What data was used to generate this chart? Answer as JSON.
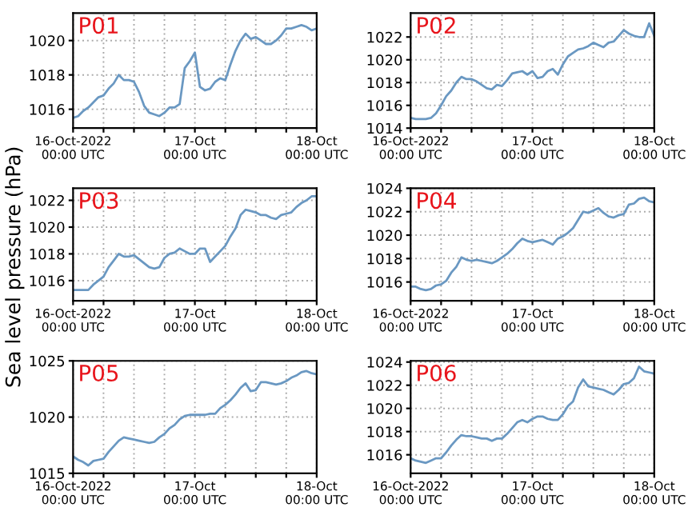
{
  "chart_data": [
    {
      "type": "line",
      "title": "P01",
      "x": [
        "2022-10-16T00:00",
        "2022-10-16T01:00",
        "2022-10-16T02:00",
        "2022-10-16T03:00",
        "2022-10-16T04:00",
        "2022-10-16T05:00",
        "2022-10-16T06:00",
        "2022-10-16T07:00",
        "2022-10-16T08:00",
        "2022-10-16T09:00",
        "2022-10-16T10:00",
        "2022-10-16T11:00",
        "2022-10-16T12:00",
        "2022-10-16T13:00",
        "2022-10-16T14:00",
        "2022-10-16T15:00",
        "2022-10-16T16:00",
        "2022-10-16T17:00",
        "2022-10-16T18:00",
        "2022-10-16T19:00",
        "2022-10-16T20:00",
        "2022-10-16T21:00",
        "2022-10-16T22:00",
        "2022-10-16T23:00",
        "2022-10-17T00:00",
        "2022-10-17T01:00",
        "2022-10-17T02:00",
        "2022-10-17T03:00",
        "2022-10-17T04:00",
        "2022-10-17T05:00",
        "2022-10-17T06:00",
        "2022-10-17T07:00",
        "2022-10-17T08:00",
        "2022-10-17T09:00",
        "2022-10-17T10:00",
        "2022-10-17T11:00",
        "2022-10-17T12:00",
        "2022-10-17T13:00",
        "2022-10-17T14:00",
        "2022-10-17T15:00",
        "2022-10-17T16:00",
        "2022-10-17T17:00",
        "2022-10-17T18:00",
        "2022-10-17T19:00",
        "2022-10-17T20:00",
        "2022-10-17T21:00",
        "2022-10-17T22:00",
        "2022-10-17T23:00",
        "2022-10-18T00:00"
      ],
      "color": "#6a98c2",
      "grid": true,
      "xlim": [
        "2022-10-16T00:00",
        "2022-10-18T00:00"
      ],
      "ylim": [
        1014.9,
        1021.6
      ],
      "yticks": [
        1016,
        1018,
        1020
      ],
      "xticks": [
        {
          "value": "2022-10-16T00:00",
          "label": "16-Oct-2022\n00:00 UTC"
        },
        {
          "value": "2022-10-16T06:00",
          "label": null
        },
        {
          "value": "2022-10-16T12:00",
          "label": null
        },
        {
          "value": "2022-10-16T18:00",
          "label": null
        },
        {
          "value": "2022-10-17T00:00",
          "label": "17-Oct\n00:00 UTC"
        },
        {
          "value": "2022-10-17T06:00",
          "label": null
        },
        {
          "value": "2022-10-17T12:00",
          "label": null
        },
        {
          "value": "2022-10-17T18:00",
          "label": null
        },
        {
          "value": "2022-10-18T00:00",
          "label": "18-Oct\n00:00 UTC"
        }
      ],
      "values": [
        1015.5,
        1015.6,
        1015.9,
        1016.1,
        1016.4,
        1016.7,
        1016.8,
        1017.2,
        1017.5,
        1018.0,
        1017.7,
        1017.7,
        1017.6,
        1017.0,
        1016.2,
        1015.8,
        1015.7,
        1015.6,
        1015.8,
        1016.1,
        1016.1,
        1016.3,
        1018.4,
        1018.8,
        1019.3,
        1017.3,
        1017.1,
        1017.2,
        1017.6,
        1017.8,
        1017.7,
        1018.6,
        1019.4,
        1020.0,
        1020.4,
        1020.1,
        1020.2,
        1020.0,
        1019.8,
        1019.8,
        1020.0,
        1020.3,
        1020.7,
        1020.7,
        1020.8,
        1020.9,
        1020.8,
        1020.6,
        1020.7
      ]
    },
    {
      "type": "line",
      "title": "P02",
      "x": [
        "2022-10-16T00:00",
        "2022-10-16T01:00",
        "2022-10-16T02:00",
        "2022-10-16T03:00",
        "2022-10-16T04:00",
        "2022-10-16T05:00",
        "2022-10-16T06:00",
        "2022-10-16T07:00",
        "2022-10-16T08:00",
        "2022-10-16T09:00",
        "2022-10-16T10:00",
        "2022-10-16T11:00",
        "2022-10-16T12:00",
        "2022-10-16T13:00",
        "2022-10-16T14:00",
        "2022-10-16T15:00",
        "2022-10-16T16:00",
        "2022-10-16T17:00",
        "2022-10-16T18:00",
        "2022-10-16T19:00",
        "2022-10-16T20:00",
        "2022-10-16T21:00",
        "2022-10-16T22:00",
        "2022-10-16T23:00",
        "2022-10-17T00:00",
        "2022-10-17T01:00",
        "2022-10-17T02:00",
        "2022-10-17T03:00",
        "2022-10-17T04:00",
        "2022-10-17T05:00",
        "2022-10-17T06:00",
        "2022-10-17T07:00",
        "2022-10-17T08:00",
        "2022-10-17T09:00",
        "2022-10-17T10:00",
        "2022-10-17T11:00",
        "2022-10-17T12:00",
        "2022-10-17T13:00",
        "2022-10-17T14:00",
        "2022-10-17T15:00",
        "2022-10-17T16:00",
        "2022-10-17T17:00",
        "2022-10-17T18:00",
        "2022-10-17T19:00",
        "2022-10-17T20:00",
        "2022-10-17T21:00",
        "2022-10-17T22:00",
        "2022-10-17T23:00",
        "2022-10-18T00:00"
      ],
      "color": "#6a98c2",
      "grid": true,
      "xlim": [
        "2022-10-16T00:00",
        "2022-10-18T00:00"
      ],
      "ylim": [
        1014,
        1024.1
      ],
      "yticks": [
        1014,
        1016,
        1018,
        1020,
        1022
      ],
      "xticks": [
        {
          "value": "2022-10-16T00:00",
          "label": "16-Oct-2022\n00:00 UTC"
        },
        {
          "value": "2022-10-16T06:00",
          "label": null
        },
        {
          "value": "2022-10-16T12:00",
          "label": null
        },
        {
          "value": "2022-10-16T18:00",
          "label": null
        },
        {
          "value": "2022-10-17T00:00",
          "label": "17-Oct\n00:00 UTC"
        },
        {
          "value": "2022-10-17T06:00",
          "label": null
        },
        {
          "value": "2022-10-17T12:00",
          "label": null
        },
        {
          "value": "2022-10-17T18:00",
          "label": null
        },
        {
          "value": "2022-10-18T00:00",
          "label": "18-Oct\n00:00 UTC"
        }
      ],
      "values": [
        1014.9,
        1014.8,
        1014.8,
        1014.8,
        1014.9,
        1015.3,
        1016.0,
        1016.8,
        1017.3,
        1018.0,
        1018.5,
        1018.3,
        1018.3,
        1018.1,
        1017.8,
        1017.5,
        1017.4,
        1017.8,
        1017.7,
        1018.2,
        1018.8,
        1018.9,
        1019.0,
        1018.7,
        1019.0,
        1018.4,
        1018.5,
        1019.0,
        1019.2,
        1018.7,
        1019.6,
        1020.3,
        1020.6,
        1020.9,
        1021.0,
        1021.2,
        1021.5,
        1021.3,
        1021.1,
        1021.5,
        1021.6,
        1022.1,
        1022.6,
        1022.3,
        1022.1,
        1022.0,
        1022.0,
        1023.2,
        1022.1
      ]
    },
    {
      "type": "line",
      "title": "P03",
      "x": [
        "2022-10-16T00:00",
        "2022-10-16T01:00",
        "2022-10-16T02:00",
        "2022-10-16T03:00",
        "2022-10-16T04:00",
        "2022-10-16T05:00",
        "2022-10-16T06:00",
        "2022-10-16T07:00",
        "2022-10-16T08:00",
        "2022-10-16T09:00",
        "2022-10-16T10:00",
        "2022-10-16T11:00",
        "2022-10-16T12:00",
        "2022-10-16T13:00",
        "2022-10-16T14:00",
        "2022-10-16T15:00",
        "2022-10-16T16:00",
        "2022-10-16T17:00",
        "2022-10-16T18:00",
        "2022-10-16T19:00",
        "2022-10-16T20:00",
        "2022-10-16T21:00",
        "2022-10-16T22:00",
        "2022-10-16T23:00",
        "2022-10-17T00:00",
        "2022-10-17T01:00",
        "2022-10-17T02:00",
        "2022-10-17T03:00",
        "2022-10-17T04:00",
        "2022-10-17T05:00",
        "2022-10-17T06:00",
        "2022-10-17T07:00",
        "2022-10-17T08:00",
        "2022-10-17T09:00",
        "2022-10-17T10:00",
        "2022-10-17T11:00",
        "2022-10-17T12:00",
        "2022-10-17T13:00",
        "2022-10-17T14:00",
        "2022-10-17T15:00",
        "2022-10-17T16:00",
        "2022-10-17T17:00",
        "2022-10-17T18:00",
        "2022-10-17T19:00",
        "2022-10-17T20:00",
        "2022-10-17T21:00",
        "2022-10-17T22:00",
        "2022-10-17T23:00",
        "2022-10-18T00:00"
      ],
      "ylabel": "Sea level pressure (hPa)",
      "color": "#6a98c2",
      "grid": true,
      "xlim": [
        "2022-10-16T00:00",
        "2022-10-18T00:00"
      ],
      "ylim": [
        1014.5,
        1022.9
      ],
      "yticks": [
        1016,
        1018,
        1020,
        1022
      ],
      "xticks": [
        {
          "value": "2022-10-16T00:00",
          "label": "16-Oct-2022\n00:00 UTC"
        },
        {
          "value": "2022-10-16T06:00",
          "label": null
        },
        {
          "value": "2022-10-16T12:00",
          "label": null
        },
        {
          "value": "2022-10-16T18:00",
          "label": null
        },
        {
          "value": "2022-10-17T00:00",
          "label": "17-Oct\n00:00 UTC"
        },
        {
          "value": "2022-10-17T06:00",
          "label": null
        },
        {
          "value": "2022-10-17T12:00",
          "label": null
        },
        {
          "value": "2022-10-17T18:00",
          "label": null
        },
        {
          "value": "2022-10-18T00:00",
          "label": "18-Oct\n00:00 UTC"
        }
      ],
      "values": [
        1015.3,
        1015.3,
        1015.3,
        1015.3,
        1015.7,
        1016.0,
        1016.3,
        1017.0,
        1017.5,
        1018.0,
        1017.8,
        1017.8,
        1017.9,
        1017.6,
        1017.3,
        1017.0,
        1016.9,
        1017.0,
        1017.7,
        1018.0,
        1018.1,
        1018.4,
        1018.2,
        1018.0,
        1018.0,
        1018.4,
        1018.4,
        1017.4,
        1017.8,
        1018.2,
        1018.6,
        1019.3,
        1019.9,
        1020.9,
        1021.3,
        1021.2,
        1021.1,
        1020.9,
        1020.9,
        1020.7,
        1020.6,
        1020.9,
        1021.0,
        1021.1,
        1021.5,
        1021.8,
        1022.0,
        1022.3,
        1022.3
      ]
    },
    {
      "type": "line",
      "title": "P04",
      "x": [
        "2022-10-16T00:00",
        "2022-10-16T01:00",
        "2022-10-16T02:00",
        "2022-10-16T03:00",
        "2022-10-16T04:00",
        "2022-10-16T05:00",
        "2022-10-16T06:00",
        "2022-10-16T07:00",
        "2022-10-16T08:00",
        "2022-10-16T09:00",
        "2022-10-16T10:00",
        "2022-10-16T11:00",
        "2022-10-16T12:00",
        "2022-10-16T13:00",
        "2022-10-16T14:00",
        "2022-10-16T15:00",
        "2022-10-16T16:00",
        "2022-10-16T17:00",
        "2022-10-16T18:00",
        "2022-10-16T19:00",
        "2022-10-16T20:00",
        "2022-10-16T21:00",
        "2022-10-16T22:00",
        "2022-10-16T23:00",
        "2022-10-17T00:00",
        "2022-10-17T01:00",
        "2022-10-17T02:00",
        "2022-10-17T03:00",
        "2022-10-17T04:00",
        "2022-10-17T05:00",
        "2022-10-17T06:00",
        "2022-10-17T07:00",
        "2022-10-17T08:00",
        "2022-10-17T09:00",
        "2022-10-17T10:00",
        "2022-10-17T11:00",
        "2022-10-17T12:00",
        "2022-10-17T13:00",
        "2022-10-17T14:00",
        "2022-10-17T15:00",
        "2022-10-17T16:00",
        "2022-10-17T17:00",
        "2022-10-17T18:00",
        "2022-10-17T19:00",
        "2022-10-17T20:00",
        "2022-10-17T21:00",
        "2022-10-17T22:00",
        "2022-10-17T23:00",
        "2022-10-18T00:00"
      ],
      "color": "#6a98c2",
      "grid": true,
      "xlim": [
        "2022-10-16T00:00",
        "2022-10-18T00:00"
      ],
      "ylim": [
        1014.4,
        1024
      ],
      "yticks": [
        1016,
        1018,
        1020,
        1022,
        1024
      ],
      "xticks": [
        {
          "value": "2022-10-16T00:00",
          "label": "16-Oct-2022\n00:00 UTC"
        },
        {
          "value": "2022-10-16T06:00",
          "label": null
        },
        {
          "value": "2022-10-16T12:00",
          "label": null
        },
        {
          "value": "2022-10-16T18:00",
          "label": null
        },
        {
          "value": "2022-10-17T00:00",
          "label": "17-Oct\n00:00 UTC"
        },
        {
          "value": "2022-10-17T06:00",
          "label": null
        },
        {
          "value": "2022-10-17T12:00",
          "label": null
        },
        {
          "value": "2022-10-17T18:00",
          "label": null
        },
        {
          "value": "2022-10-18T00:00",
          "label": "18-Oct\n00:00 UTC"
        }
      ],
      "values": [
        1015.6,
        1015.6,
        1015.4,
        1015.3,
        1015.4,
        1015.7,
        1015.8,
        1016.1,
        1016.8,
        1017.3,
        1018.1,
        1017.9,
        1017.8,
        1017.9,
        1017.8,
        1017.7,
        1017.6,
        1017.8,
        1018.1,
        1018.4,
        1018.8,
        1019.3,
        1019.7,
        1019.5,
        1019.4,
        1019.5,
        1019.6,
        1019.4,
        1019.2,
        1019.7,
        1019.9,
        1020.2,
        1020.6,
        1021.3,
        1022.0,
        1021.9,
        1022.1,
        1022.3,
        1021.9,
        1021.6,
        1021.5,
        1021.7,
        1021.8,
        1022.6,
        1022.7,
        1023.1,
        1023.2,
        1022.9,
        1022.8
      ]
    },
    {
      "type": "line",
      "title": "P05",
      "x": [
        "2022-10-16T00:00",
        "2022-10-16T01:00",
        "2022-10-16T02:00",
        "2022-10-16T03:00",
        "2022-10-16T04:00",
        "2022-10-16T05:00",
        "2022-10-16T06:00",
        "2022-10-16T07:00",
        "2022-10-16T08:00",
        "2022-10-16T09:00",
        "2022-10-16T10:00",
        "2022-10-16T11:00",
        "2022-10-16T12:00",
        "2022-10-16T13:00",
        "2022-10-16T14:00",
        "2022-10-16T15:00",
        "2022-10-16T16:00",
        "2022-10-16T17:00",
        "2022-10-16T18:00",
        "2022-10-16T19:00",
        "2022-10-16T20:00",
        "2022-10-16T21:00",
        "2022-10-16T22:00",
        "2022-10-16T23:00",
        "2022-10-17T00:00",
        "2022-10-17T01:00",
        "2022-10-17T02:00",
        "2022-10-17T03:00",
        "2022-10-17T04:00",
        "2022-10-17T05:00",
        "2022-10-17T06:00",
        "2022-10-17T07:00",
        "2022-10-17T08:00",
        "2022-10-17T09:00",
        "2022-10-17T10:00",
        "2022-10-17T11:00",
        "2022-10-17T12:00",
        "2022-10-17T13:00",
        "2022-10-17T14:00",
        "2022-10-17T15:00",
        "2022-10-17T16:00",
        "2022-10-17T17:00",
        "2022-10-17T18:00",
        "2022-10-17T19:00",
        "2022-10-17T20:00",
        "2022-10-17T21:00",
        "2022-10-17T22:00",
        "2022-10-17T23:00",
        "2022-10-18T00:00"
      ],
      "color": "#6a98c2",
      "grid": true,
      "xlim": [
        "2022-10-16T00:00",
        "2022-10-18T00:00"
      ],
      "ylim": [
        1015,
        1025
      ],
      "yticks": [
        1015,
        1020,
        1025
      ],
      "xticks": [
        {
          "value": "2022-10-16T00:00",
          "label": "16-Oct-2022\n00:00 UTC"
        },
        {
          "value": "2022-10-16T06:00",
          "label": null
        },
        {
          "value": "2022-10-16T12:00",
          "label": null
        },
        {
          "value": "2022-10-16T18:00",
          "label": null
        },
        {
          "value": "2022-10-17T00:00",
          "label": "17-Oct\n00:00 UTC"
        },
        {
          "value": "2022-10-17T06:00",
          "label": null
        },
        {
          "value": "2022-10-17T12:00",
          "label": null
        },
        {
          "value": "2022-10-17T18:00",
          "label": null
        },
        {
          "value": "2022-10-18T00:00",
          "label": "18-Oct\n00:00 UTC"
        }
      ],
      "values": [
        1016.5,
        1016.2,
        1016.0,
        1015.7,
        1016.1,
        1016.2,
        1016.3,
        1016.9,
        1017.4,
        1017.9,
        1018.2,
        1018.1,
        1018.0,
        1017.9,
        1017.8,
        1017.7,
        1017.8,
        1018.2,
        1018.5,
        1019.0,
        1019.3,
        1019.8,
        1020.1,
        1020.2,
        1020.2,
        1020.2,
        1020.2,
        1020.3,
        1020.3,
        1020.8,
        1021.1,
        1021.5,
        1022.0,
        1022.6,
        1023.0,
        1022.3,
        1022.4,
        1023.1,
        1023.1,
        1023.0,
        1022.9,
        1023.0,
        1023.2,
        1023.5,
        1023.7,
        1024.0,
        1024.1,
        1023.9,
        1023.8
      ]
    },
    {
      "type": "line",
      "title": "P06",
      "x": [
        "2022-10-16T00:00",
        "2022-10-16T01:00",
        "2022-10-16T02:00",
        "2022-10-16T03:00",
        "2022-10-16T04:00",
        "2022-10-16T05:00",
        "2022-10-16T06:00",
        "2022-10-16T07:00",
        "2022-10-16T08:00",
        "2022-10-16T09:00",
        "2022-10-16T10:00",
        "2022-10-16T11:00",
        "2022-10-16T12:00",
        "2022-10-16T13:00",
        "2022-10-16T14:00",
        "2022-10-16T15:00",
        "2022-10-16T16:00",
        "2022-10-16T17:00",
        "2022-10-16T18:00",
        "2022-10-16T19:00",
        "2022-10-16T20:00",
        "2022-10-16T21:00",
        "2022-10-16T22:00",
        "2022-10-16T23:00",
        "2022-10-17T00:00",
        "2022-10-17T01:00",
        "2022-10-17T02:00",
        "2022-10-17T03:00",
        "2022-10-17T04:00",
        "2022-10-17T05:00",
        "2022-10-17T06:00",
        "2022-10-17T07:00",
        "2022-10-17T08:00",
        "2022-10-17T09:00",
        "2022-10-17T10:00",
        "2022-10-17T11:00",
        "2022-10-17T12:00",
        "2022-10-17T13:00",
        "2022-10-17T14:00",
        "2022-10-17T15:00",
        "2022-10-17T16:00",
        "2022-10-17T17:00",
        "2022-10-17T18:00",
        "2022-10-17T19:00",
        "2022-10-17T20:00",
        "2022-10-17T21:00",
        "2022-10-17T22:00",
        "2022-10-17T23:00",
        "2022-10-18T00:00"
      ],
      "color": "#6a98c2",
      "grid": true,
      "xlim": [
        "2022-10-16T00:00",
        "2022-10-18T00:00"
      ],
      "ylim": [
        1014.4,
        1024.1
      ],
      "yticks": [
        1016,
        1018,
        1020,
        1022,
        1024
      ],
      "xticks": [
        {
          "value": "2022-10-16T00:00",
          "label": "16-Oct-2022\n00:00 UTC"
        },
        {
          "value": "2022-10-16T06:00",
          "label": null
        },
        {
          "value": "2022-10-16T12:00",
          "label": null
        },
        {
          "value": "2022-10-16T18:00",
          "label": null
        },
        {
          "value": "2022-10-17T00:00",
          "label": "17-Oct\n00:00 UTC"
        },
        {
          "value": "2022-10-17T06:00",
          "label": null
        },
        {
          "value": "2022-10-17T12:00",
          "label": null
        },
        {
          "value": "2022-10-17T18:00",
          "label": null
        },
        {
          "value": "2022-10-18T00:00",
          "label": "18-Oct\n00:00 UTC"
        }
      ],
      "values": [
        1015.7,
        1015.5,
        1015.4,
        1015.3,
        1015.5,
        1015.7,
        1015.7,
        1016.2,
        1016.8,
        1017.3,
        1017.7,
        1017.6,
        1017.6,
        1017.5,
        1017.4,
        1017.4,
        1017.2,
        1017.4,
        1017.4,
        1017.8,
        1018.3,
        1018.8,
        1019.0,
        1018.8,
        1019.1,
        1019.3,
        1019.3,
        1019.1,
        1019.0,
        1019.0,
        1019.5,
        1020.2,
        1020.6,
        1021.8,
        1022.5,
        1021.9,
        1021.8,
        1021.7,
        1021.6,
        1021.4,
        1021.2,
        1021.6,
        1022.1,
        1022.2,
        1022.6,
        1023.6,
        1023.2,
        1023.1,
        1023.0
      ]
    }
  ]
}
